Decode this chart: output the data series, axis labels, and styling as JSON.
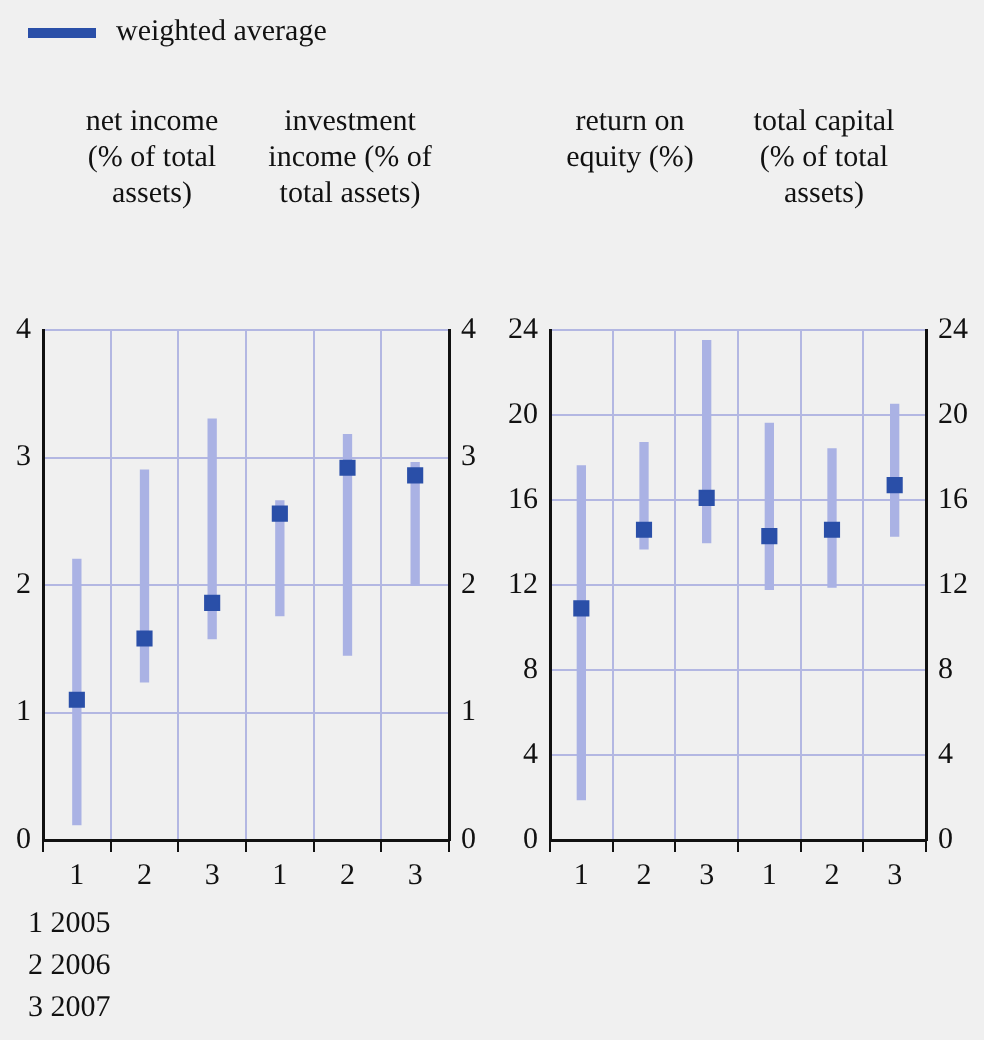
{
  "chart_data": [
    {
      "type": "bar",
      "categories": [
        "1",
        "2",
        "3",
        "1",
        "2",
        "3"
      ],
      "series": [
        {
          "type": "bar",
          "color": "#aab2e4",
          "base": [
            0.12,
            1.24,
            1.58,
            1.76,
            1.45,
            2.0
          ],
          "values": [
            2.08,
            1.66,
            1.72,
            0.9,
            1.73,
            0.96
          ]
        },
        {
          "type": "scatter",
          "name": "weighted average",
          "color": "#2a4fa8",
          "values": [
            1.1,
            1.58,
            1.86,
            2.56,
            2.92,
            2.86
          ]
        }
      ],
      "ylim": [
        0,
        4
      ],
      "yticks": [
        0,
        1,
        2,
        3,
        4
      ],
      "y2lim": [
        0,
        4
      ],
      "y2ticks": [
        0,
        1,
        2,
        3,
        4
      ],
      "grid": true,
      "legend": "top left",
      "marker": "square",
      "annotations": [
        "net income (% of total assets)",
        "investment income (% of total assets)",
        "1  2005",
        "2  2006",
        "3  2007"
      ]
    },
    {
      "type": "bar",
      "categories": [
        "1",
        "2",
        "3",
        "1",
        "2",
        "3"
      ],
      "series": [
        {
          "type": "bar",
          "color": "#aab2e4",
          "base": [
            1.9,
            13.7,
            14.0,
            11.8,
            11.9,
            14.3
          ],
          "values": [
            15.7,
            5.0,
            9.5,
            7.8,
            6.5,
            6.2
          ]
        },
        {
          "type": "scatter",
          "color": "#2a4fa8",
          "values": [
            10.9,
            14.6,
            16.1,
            14.3,
            14.6,
            16.7
          ]
        }
      ],
      "ylim": [
        0,
        24
      ],
      "yticks": [
        0,
        4,
        8,
        12,
        16,
        20,
        24
      ],
      "y2lim": [
        0,
        24
      ],
      "y2ticks": [
        0,
        4,
        8,
        12,
        16,
        20,
        24
      ],
      "grid": true,
      "marker": "square",
      "annotations": [
        "return on equity (%)",
        "total capital (% of total assets)"
      ]
    }
  ]
}
